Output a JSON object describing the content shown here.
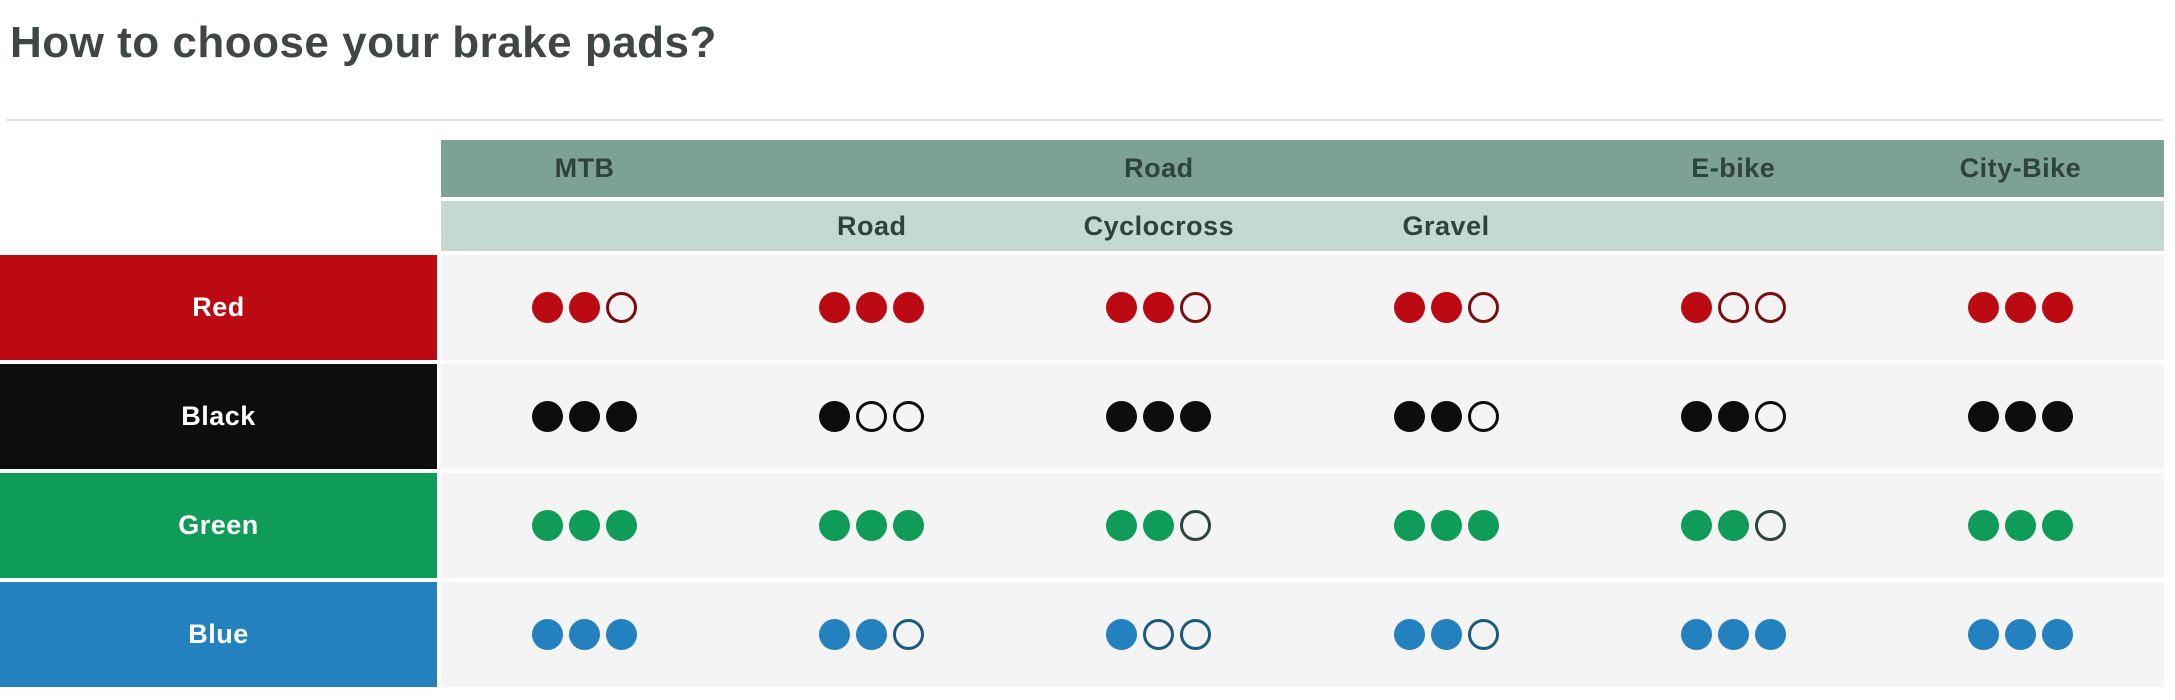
{
  "page": {
    "title": "How to choose your brake pads?"
  },
  "chart_data": {
    "type": "table",
    "title": "How to choose your brake pads?",
    "columns": [
      "MTB",
      "Road",
      "Cyclocross",
      "Gravel",
      "E-bike",
      "City-Bike"
    ],
    "column_groups": [
      {
        "label": "MTB",
        "span": 1
      },
      {
        "label": "Road",
        "span": 3
      },
      {
        "label": "E-bike",
        "span": 1
      },
      {
        "label": "City-Bike",
        "span": 1
      }
    ],
    "sub_headers": [
      "",
      "Road",
      "Cyclocross",
      "Gravel",
      "",
      ""
    ],
    "max_rating": 3,
    "rating_note": "filled dots out of 3",
    "rows": [
      {
        "label": "Red",
        "color": "#bb0a11",
        "hollow_stroke": "#7a0d10",
        "ratings": [
          2,
          3,
          2,
          2,
          1,
          3
        ]
      },
      {
        "label": "Black",
        "color": "#0d0d0d",
        "hollow_stroke": "#0d0d0d",
        "ratings": [
          3,
          1,
          3,
          2,
          2,
          3
        ]
      },
      {
        "label": "Green",
        "color": "#0f9b58",
        "hollow_stroke": "#2d453c",
        "ratings": [
          3,
          3,
          2,
          3,
          2,
          3
        ]
      },
      {
        "label": "Blue",
        "color": "#2381c0",
        "hollow_stroke": "#1b5a80",
        "ratings": [
          3,
          2,
          1,
          2,
          3,
          3
        ]
      }
    ],
    "colors": {
      "header_top_bg": "#7ba295",
      "header_sub_bg": "#c4dad1",
      "header_text": "#31423c",
      "cell_bg": "#f4f4f4",
      "row_label_text": "#ffffff",
      "title_text": "#3e4743"
    },
    "legend": {
      "filled_symbol": "●",
      "hollow_symbol": "○"
    }
  }
}
